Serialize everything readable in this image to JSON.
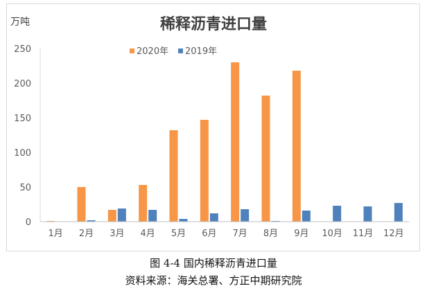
{
  "chart_data": {
    "type": "bar",
    "title": "稀释沥青进口量",
    "ylabel": "万吨",
    "xlabel": "",
    "ylim": [
      0,
      250
    ],
    "yticks": [
      0,
      50,
      100,
      150,
      200,
      250
    ],
    "grid": false,
    "legend_position": "top",
    "categories": [
      "1月",
      "2月",
      "3月",
      "4月",
      "5月",
      "6月",
      "7月",
      "8月",
      "9月",
      "10月",
      "11月",
      "12月"
    ],
    "series": [
      {
        "name": "2020年",
        "color": "#f79646",
        "values": [
          1,
          50,
          17,
          53,
          132,
          147,
          230,
          182,
          218,
          null,
          null,
          null
        ]
      },
      {
        "name": "2019年",
        "color": "#4f81bd",
        "values": [
          0,
          2,
          19,
          17,
          4,
          12,
          18,
          1,
          16,
          23,
          22,
          27
        ]
      }
    ]
  },
  "caption": {
    "figure": "图 4-4  国内稀释沥青进口量",
    "source": "资料来源：海关总署、方正中期研究院"
  }
}
